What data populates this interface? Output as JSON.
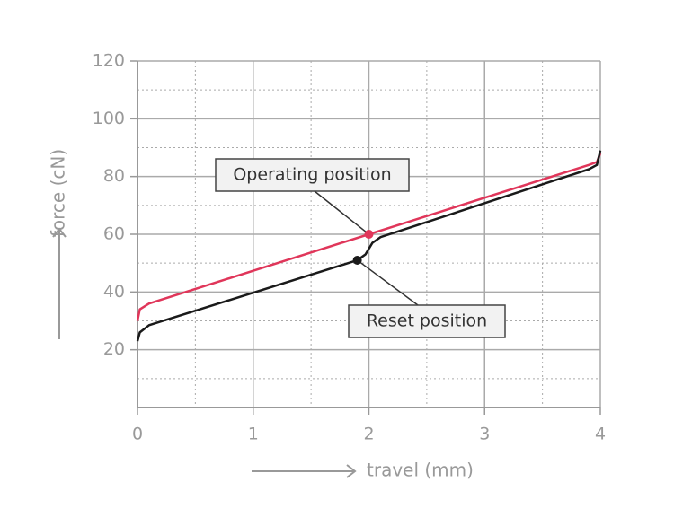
{
  "chart_data": {
    "type": "line",
    "xlabel": "travel (mm)",
    "ylabel": "force (cN)",
    "xlim": [
      0,
      4
    ],
    "xticks": [
      0,
      1,
      2,
      3,
      4
    ],
    "x_minor_ticks": [
      0.5,
      1.5,
      2.5,
      3.5
    ],
    "ylim": [
      0,
      120
    ],
    "yticks": [
      20,
      40,
      60,
      80,
      100,
      120
    ],
    "y_minor_ticks": [
      10,
      30,
      50,
      70,
      90,
      110
    ],
    "grid": true,
    "series": [
      {
        "color": "#e0365a",
        "x": [
          0,
          0.02,
          0.1,
          2,
          3.9,
          3.97,
          4
        ],
        "values": [
          30,
          34,
          36,
          60,
          84,
          85,
          88
        ]
      },
      {
        "color": "#1a1a1a",
        "x": [
          0,
          0.02,
          0.1,
          1.9,
          1.97,
          2.03,
          2.1,
          3.9,
          3.97,
          4
        ],
        "values": [
          23,
          26,
          28.5,
          51,
          53,
          57,
          59,
          82.5,
          84,
          89
        ]
      }
    ],
    "annotations": [
      {
        "text": "Operating position",
        "x": 2,
        "y": 60,
        "color": "#e0365a"
      },
      {
        "text": "Reset position",
        "x": 1.9,
        "y": 51,
        "color": "#1a1a1a"
      }
    ]
  }
}
